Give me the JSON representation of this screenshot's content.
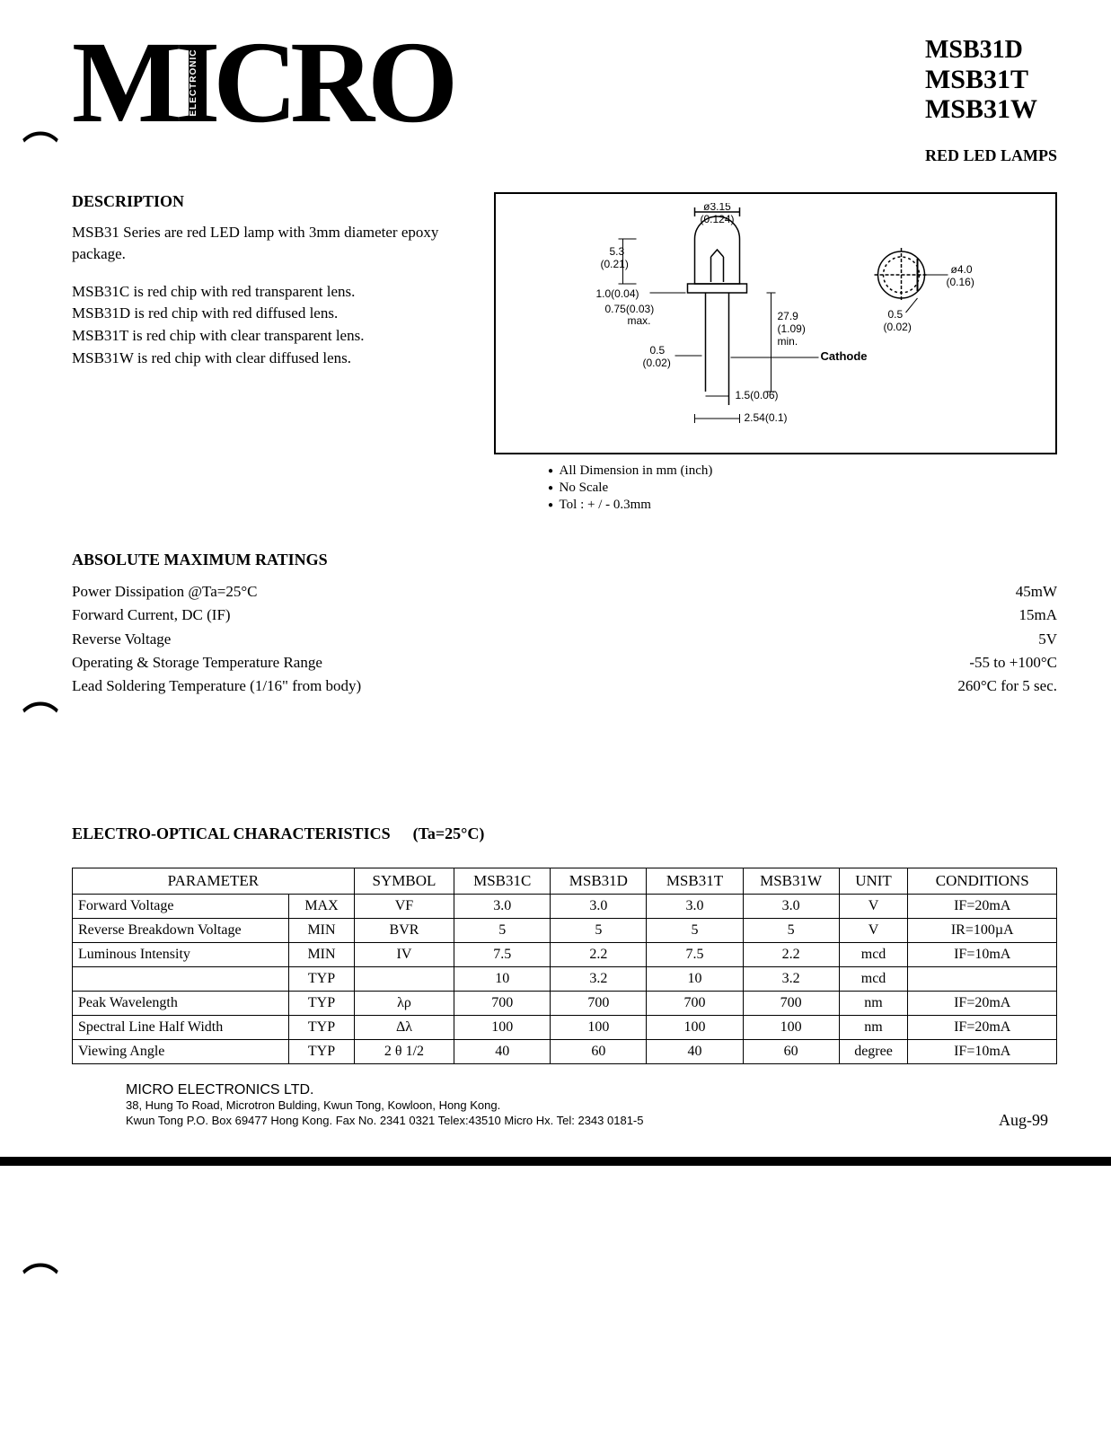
{
  "logo": {
    "text_chars": [
      "M",
      "I",
      "C",
      "R",
      "O"
    ],
    "vertical_label": "ELECTRONIC"
  },
  "part_numbers": {
    "faded": "MSB31D",
    "p1": "MSB31T",
    "p2": "MSB31W"
  },
  "product_type": "RED LED LAMPS",
  "description": {
    "title": "DESCRIPTION",
    "intro": "MSB31 Series are red LED lamp with 3mm diameter epoxy package.",
    "variants": [
      "MSB31C is red chip with red transparent lens.",
      "MSB31D is red chip with red diffused lens.",
      "MSB31T is red chip with clear transparent lens.",
      "MSB31W is red chip with clear diffused lens."
    ]
  },
  "diagram": {
    "dims": {
      "d1": "ø3.15",
      "d1_in": "(0.124)",
      "h1": "5.3",
      "h1_in": "(0.21)",
      "t1": "1.0(0.04)",
      "t2": "0.75(0.03)",
      "t2_note": "max.",
      "w1": "0.5",
      "w1_in": "(0.02)",
      "lead": "27.9",
      "lead_in": "(1.09)",
      "lead_note": "min.",
      "top_d": "ø4.0",
      "top_d_in": "(0.16)",
      "top_w": "0.5",
      "top_w_in": "(0.02)",
      "cathode": "Cathode",
      "pitch": "1.5(0.06)",
      "pitch2": "2.54(0.1)"
    },
    "notes": [
      "All Dimension in mm (inch)",
      "No Scale",
      "Tol :  + / -  0.3mm"
    ]
  },
  "amr": {
    "title": "ABSOLUTE  MAXIMUM  RATINGS",
    "rows": [
      {
        "label": "Power Dissipation @Ta=25°C",
        "value": "45mW"
      },
      {
        "label": "Forward Current, DC (IF)",
        "value": "15mA"
      },
      {
        "label": "Reverse Voltage",
        "value": "5V"
      },
      {
        "label": "Operating & Storage Temperature Range",
        "value": "-55 to +100°C"
      },
      {
        "label": "Lead Soldering Temperature (1/16\" from body)",
        "value": "260°C for 5 sec."
      }
    ]
  },
  "eoc": {
    "title": "ELECTRO-OPTICAL  CHARACTERISTICS",
    "cond_title": "(Ta=25°C)",
    "columns": [
      "PARAMETER",
      "SYMBOL",
      "MSB31C",
      "MSB31D",
      "MSB31T",
      "MSB31W",
      "UNIT",
      "CONDITIONS"
    ],
    "rows": [
      {
        "param": "Forward Voltage",
        "limit": "MAX",
        "sym": "VF",
        "c": "3.0",
        "d": "3.0",
        "t": "3.0",
        "w": "3.0",
        "unit": "V",
        "cond": "IF=20mA"
      },
      {
        "param": "Reverse Breakdown Voltage",
        "limit": "MIN",
        "sym": "BVR",
        "c": "5",
        "d": "5",
        "t": "5",
        "w": "5",
        "unit": "V",
        "cond": "IR=100µA"
      },
      {
        "param": "Luminous Intensity",
        "limit": "MIN",
        "sym": "IV",
        "c": "7.5",
        "d": "2.2",
        "t": "7.5",
        "w": "2.2",
        "unit": "mcd",
        "cond": "IF=10mA"
      },
      {
        "param": "",
        "limit": "TYP",
        "sym": "",
        "c": "10",
        "d": "3.2",
        "t": "10",
        "w": "3.2",
        "unit": "mcd",
        "cond": ""
      },
      {
        "param": "Peak Wavelength",
        "limit": "TYP",
        "sym": "λρ",
        "c": "700",
        "d": "700",
        "t": "700",
        "w": "700",
        "unit": "nm",
        "cond": "IF=20mA"
      },
      {
        "param": "Spectral Line Half Width",
        "limit": "TYP",
        "sym": "Δλ",
        "c": "100",
        "d": "100",
        "t": "100",
        "w": "100",
        "unit": "nm",
        "cond": "IF=20mA"
      },
      {
        "param": "Viewing Angle",
        "limit": "TYP",
        "sym": "2 θ 1/2",
        "c": "40",
        "d": "60",
        "t": "40",
        "w": "60",
        "unit": "degree",
        "cond": "IF=10mA"
      }
    ]
  },
  "footer": {
    "company": "MICRO ELECTRONICS LTD.",
    "addr1": "38, Hung To Road, Microtron Bulding, Kwun Tong, Kowloon, Hong Kong.",
    "addr2": "Kwun Tong P.O. Box 69477 Hong Kong. Fax No. 2341 0321   Telex:43510 Micro Hx.   Tel: 2343 0181-5",
    "date": "Aug-99"
  }
}
